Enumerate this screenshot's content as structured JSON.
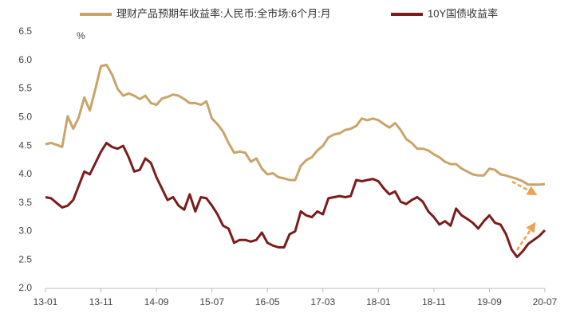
{
  "chart_data": {
    "type": "line",
    "unit_label": "%",
    "categories": [
      "13-01",
      null,
      null,
      null,
      null,
      null,
      null,
      null,
      null,
      null,
      "13-11",
      null,
      null,
      null,
      null,
      null,
      null,
      null,
      null,
      null,
      "14-09",
      null,
      null,
      null,
      null,
      null,
      null,
      null,
      null,
      null,
      "15-07",
      null,
      null,
      null,
      null,
      null,
      null,
      null,
      null,
      null,
      "16-05",
      null,
      null,
      null,
      null,
      null,
      null,
      null,
      null,
      null,
      "17-03",
      null,
      null,
      null,
      null,
      null,
      null,
      null,
      null,
      null,
      "18-01",
      null,
      null,
      null,
      null,
      null,
      null,
      null,
      null,
      null,
      "18-11",
      null,
      null,
      null,
      null,
      null,
      null,
      null,
      null,
      null,
      "19-09",
      null,
      null,
      null,
      null,
      null,
      null,
      null,
      null,
      null,
      "20-07"
    ],
    "series": [
      {
        "name": "理财产品预期年收益率:人民币:全市场:6个月:月",
        "color": "#c8a46a",
        "values": [
          4.53,
          4.55,
          4.52,
          4.48,
          5.02,
          4.8,
          5.0,
          5.35,
          5.12,
          5.5,
          5.9,
          5.92,
          5.75,
          5.5,
          5.38,
          5.42,
          5.38,
          5.32,
          5.38,
          5.25,
          5.22,
          5.33,
          5.36,
          5.4,
          5.38,
          5.32,
          5.25,
          5.25,
          5.22,
          5.28,
          4.98,
          4.88,
          4.75,
          4.55,
          4.38,
          4.4,
          4.38,
          4.22,
          4.28,
          4.1,
          4.0,
          4.02,
          3.95,
          3.93,
          3.9,
          3.9,
          4.15,
          4.25,
          4.3,
          4.42,
          4.5,
          4.65,
          4.7,
          4.72,
          4.78,
          4.8,
          4.85,
          4.98,
          4.95,
          4.98,
          4.95,
          4.88,
          4.82,
          4.9,
          4.78,
          4.62,
          4.55,
          4.45,
          4.45,
          4.42,
          4.35,
          4.3,
          4.22,
          4.18,
          4.18,
          4.1,
          4.05,
          4.0,
          3.98,
          3.98,
          4.1,
          4.08,
          4.0,
          3.98,
          3.95,
          3.92,
          3.88,
          3.82,
          3.82,
          3.82,
          3.83
        ]
      },
      {
        "name": "10Y国债收益率",
        "color": "#7b1c1c",
        "values": [
          3.6,
          3.58,
          3.5,
          3.42,
          3.45,
          3.55,
          3.8,
          4.05,
          4.0,
          4.2,
          4.4,
          4.55,
          4.48,
          4.45,
          4.5,
          4.3,
          4.05,
          4.08,
          4.28,
          4.2,
          3.95,
          3.75,
          3.55,
          3.6,
          3.45,
          3.38,
          3.65,
          3.35,
          3.6,
          3.58,
          3.45,
          3.3,
          3.1,
          3.05,
          2.8,
          2.85,
          2.85,
          2.82,
          2.85,
          2.98,
          2.8,
          2.75,
          2.72,
          2.72,
          2.95,
          3.0,
          3.35,
          3.28,
          3.25,
          3.35,
          3.3,
          3.58,
          3.6,
          3.62,
          3.6,
          3.62,
          3.9,
          3.88,
          3.9,
          3.92,
          3.88,
          3.75,
          3.65,
          3.7,
          3.52,
          3.48,
          3.55,
          3.6,
          3.52,
          3.35,
          3.25,
          3.12,
          3.18,
          3.1,
          3.4,
          3.28,
          3.22,
          3.15,
          3.05,
          3.18,
          3.28,
          3.15,
          3.12,
          2.95,
          2.68,
          2.55,
          2.65,
          2.78,
          2.85,
          2.92,
          3.02
        ]
      }
    ],
    "ylim": [
      2.0,
      6.5
    ],
    "yticks": [
      {
        "value": 2,
        "label": "2.0"
      },
      2.5,
      {
        "value": 3,
        "label": "3.0"
      },
      3.5,
      {
        "value": 4,
        "label": "4.0"
      },
      4.5,
      {
        "value": 5,
        "label": "5.0"
      },
      5.5,
      {
        "value": 6,
        "label": "6.0"
      },
      6.5
    ],
    "grid": false,
    "legend": "top"
  }
}
